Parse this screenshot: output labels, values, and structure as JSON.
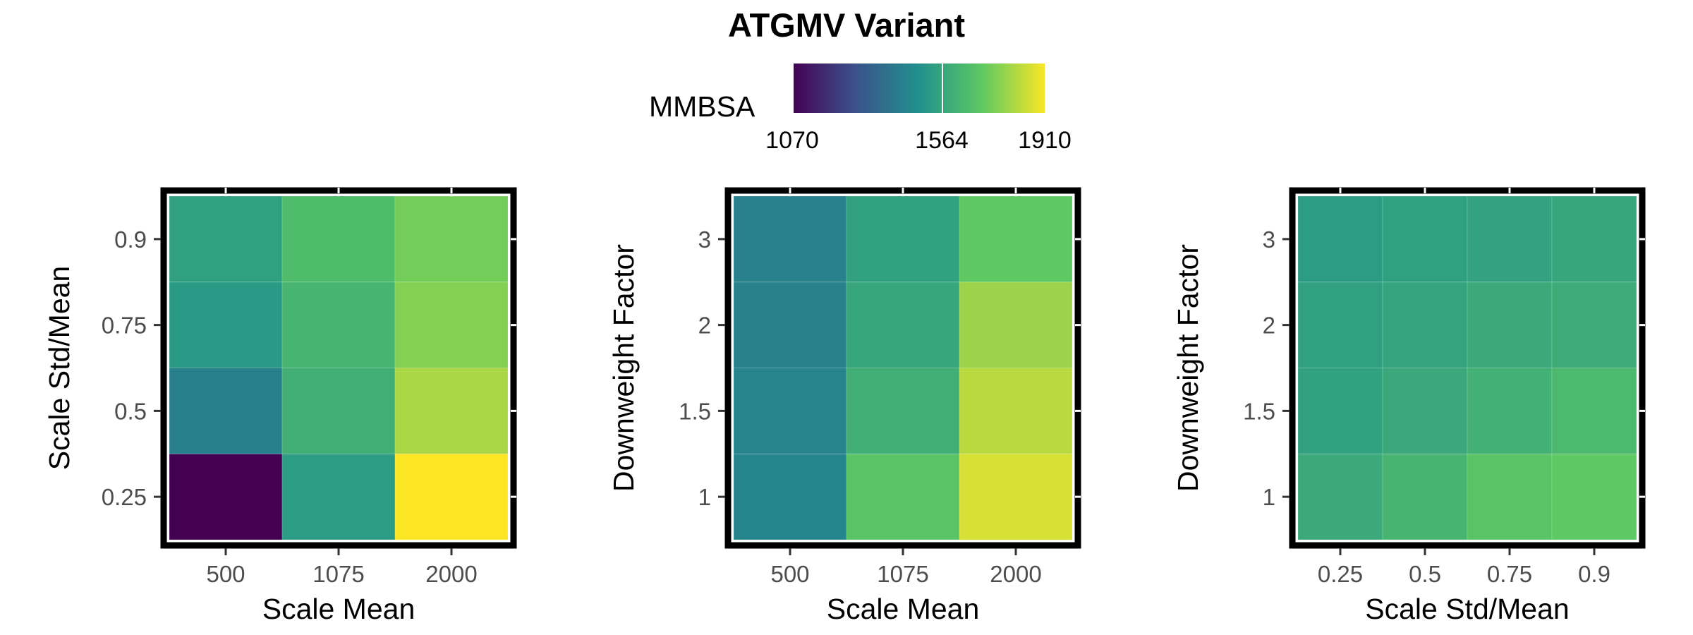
{
  "chart_data": [
    {
      "type": "heatmap",
      "title": "ATGMV Variant",
      "xlabel": "Scale Mean",
      "ylabel": "Scale Std/Mean",
      "x": [
        "500",
        "1075",
        "2000"
      ],
      "y": [
        "0.25",
        "0.5",
        "0.75",
        "0.9"
      ],
      "values": [
        [
          1070,
          1530,
          1910
        ],
        [
          1430,
          1600,
          1800
        ],
        [
          1520,
          1620,
          1750
        ],
        [
          1545,
          1650,
          1730
        ]
      ]
    },
    {
      "type": "heatmap",
      "xlabel": "Scale Mean",
      "ylabel": "Downweight Factor",
      "x": [
        "500",
        "1075",
        "2000"
      ],
      "y": [
        "1",
        "1.5",
        "2",
        "3"
      ],
      "values": [
        [
          1450,
          1680,
          1860
        ],
        [
          1445,
          1600,
          1820
        ],
        [
          1440,
          1565,
          1780
        ],
        [
          1435,
          1550,
          1700
        ]
      ]
    },
    {
      "type": "heatmap",
      "xlabel": "Scale Std/Mean",
      "ylabel": "Downweight Factor",
      "x": [
        "0.25",
        "0.5",
        "0.75",
        "0.9"
      ],
      "y": [
        "1",
        "1.5",
        "2",
        "3"
      ],
      "values": [
        [
          1580,
          1620,
          1680,
          1700
        ],
        [
          1550,
          1575,
          1610,
          1640
        ],
        [
          1545,
          1560,
          1580,
          1590
        ],
        [
          1530,
          1545,
          1555,
          1565
        ]
      ]
    }
  ],
  "legend": {
    "title": "MMBSA",
    "min": 1070,
    "max": 1910,
    "ticks": [
      "1070",
      "1564",
      "1910"
    ],
    "colors": [
      "#440154",
      "#3b528b",
      "#21918c",
      "#5ec962",
      "#fde725"
    ]
  }
}
